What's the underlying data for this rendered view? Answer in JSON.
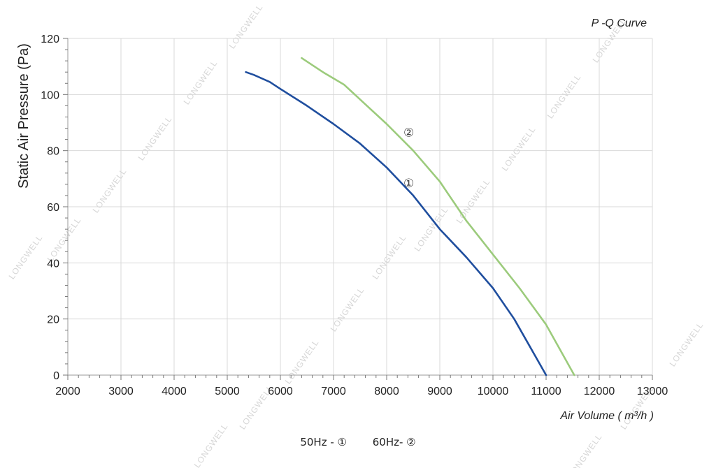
{
  "chart_data": {
    "type": "line",
    "title": "P -Q Curve",
    "xlabel": "Air Volume ( m³/h )",
    "ylabel": "Static Air Pressure  (Pa)",
    "xlim": [
      2000,
      13000
    ],
    "ylim": [
      0,
      120
    ],
    "xticks": [
      2000,
      3000,
      4000,
      5000,
      6000,
      7000,
      8000,
      9000,
      10000,
      11000,
      12000,
      13000
    ],
    "yticks": [
      0,
      20,
      40,
      60,
      80,
      100,
      120
    ],
    "grid": true,
    "series": [
      {
        "name": "①",
        "color": "#1f4e9e",
        "x": [
          5350,
          5500,
          5800,
          6000,
          6500,
          7000,
          7500,
          8000,
          8500,
          9000,
          9500,
          10000,
          10400,
          10700,
          11000
        ],
        "y": [
          108,
          107,
          104.5,
          102,
          96,
          89.5,
          82.5,
          74,
          64,
          52,
          42,
          31,
          20,
          10,
          0
        ]
      },
      {
        "name": "②",
        "color": "#9ccb7c",
        "x": [
          6400,
          6800,
          7200,
          7600,
          8000,
          8500,
          9000,
          9500,
          10000,
          10500,
          11000,
          11530
        ],
        "y": [
          113,
          108,
          103.5,
          96.5,
          89.5,
          80,
          69,
          55,
          43,
          31,
          18,
          0
        ]
      }
    ],
    "annotations": [
      {
        "text": "②",
        "x": 8600,
        "y": 85
      },
      {
        "text": "①",
        "x": 8600,
        "y": 67
      }
    ]
  },
  "legend": {
    "items": [
      "50Hz -  ①",
      "60Hz-  ②"
    ]
  },
  "watermark": "LONGWELL"
}
